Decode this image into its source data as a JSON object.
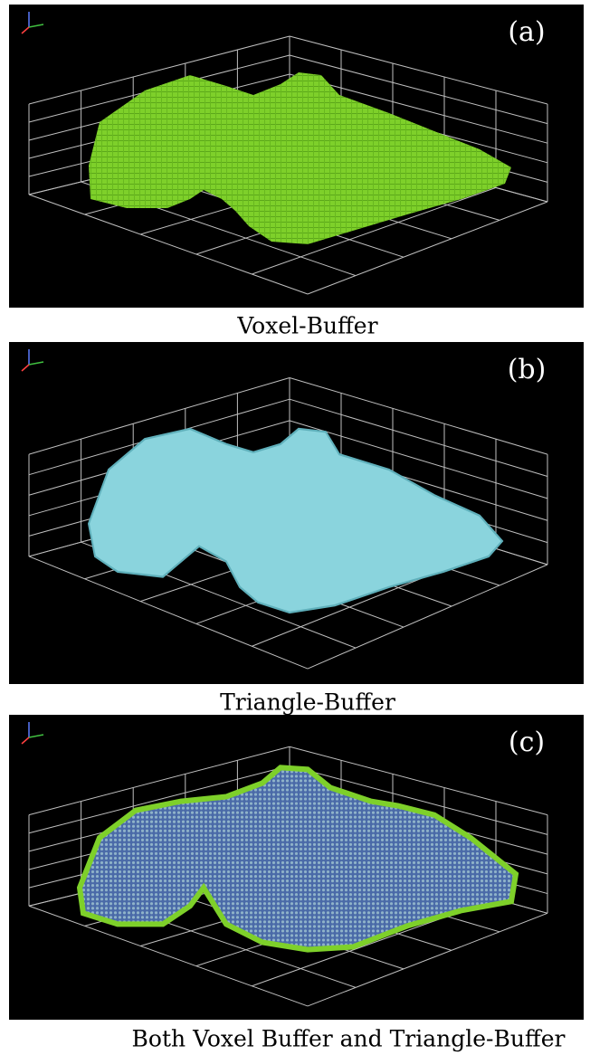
{
  "panels": [
    {
      "label": "(a)",
      "caption": "Voxel-Buffer"
    },
    {
      "label": "(b)",
      "caption": "Triangle-Buffer"
    },
    {
      "label": "(c)",
      "caption": "Both Voxel Buffer and Triangle-Buffer"
    }
  ]
}
